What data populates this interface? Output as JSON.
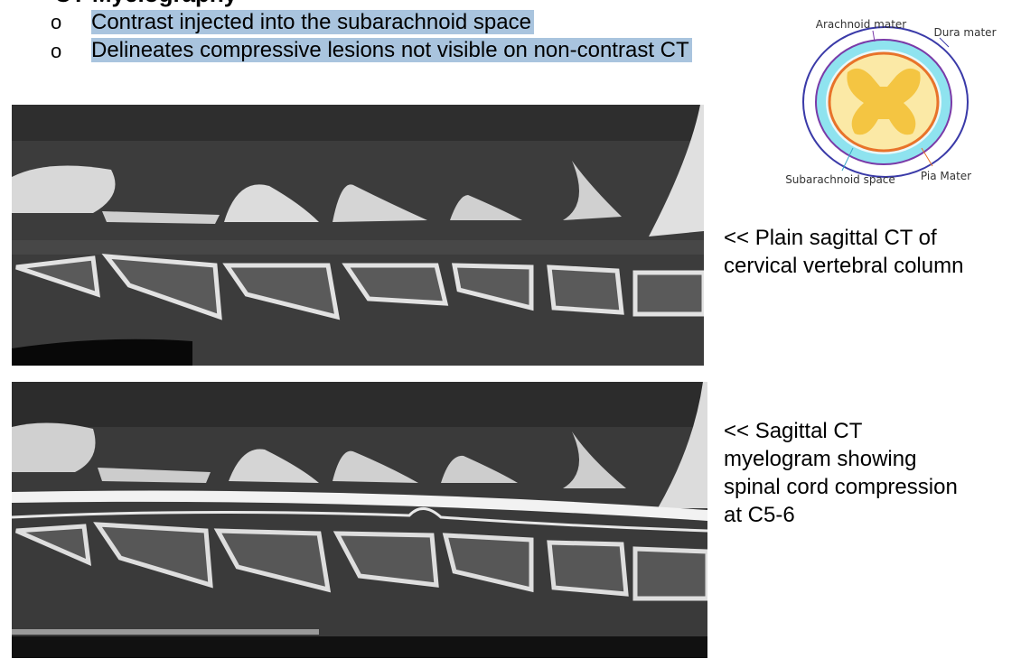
{
  "header": {
    "title": "CT Myelography"
  },
  "bullets": [
    {
      "marker": "o",
      "text": "Contrast injected into the subarachnoid space"
    },
    {
      "marker": "o",
      "text": "Delineates compressive lesions not visible on non-contrast CT"
    }
  ],
  "diagram": {
    "labels": [
      "Arachnoid mater",
      "Dura mater",
      "Subarachnoid space",
      "Pia Mater"
    ]
  },
  "captions": [
    {
      "lines": [
        "<< Plain sagittal CT of",
        "cervical vertebral column"
      ]
    },
    {
      "lines": [
        "<< Sagittal CT",
        "myelogram showing",
        "spinal cord compression",
        "at C5-6"
      ]
    }
  ]
}
